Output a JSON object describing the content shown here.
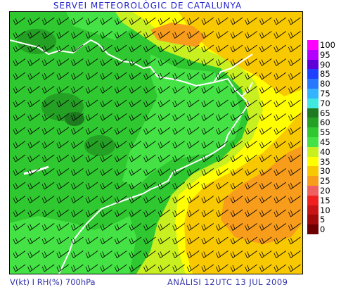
{
  "header": {
    "title": "SERVEI METEOROLÒGIC DE CATALUNYA"
  },
  "footer": {
    "variables": "V(kt) I RH(%) 700hPa",
    "analysis": "ANÀLISI 12UTC 13 JUL 2009"
  },
  "legend": {
    "items": [
      {
        "label": "100",
        "color": "#ff00ff"
      },
      {
        "label": "95",
        "color": "#b400ff"
      },
      {
        "label": "90",
        "color": "#6000d8"
      },
      {
        "label": "85",
        "color": "#2040ff"
      },
      {
        "label": "80",
        "color": "#2878ff"
      },
      {
        "label": "75",
        "color": "#34b4ff"
      },
      {
        "label": "70",
        "color": "#40e8e0"
      },
      {
        "label": "65",
        "color": "#1e7a1e"
      },
      {
        "label": "60",
        "color": "#24a024"
      },
      {
        "label": "55",
        "color": "#30c830"
      },
      {
        "label": "45",
        "color": "#44e244"
      },
      {
        "label": "40",
        "color": "#c8f020"
      },
      {
        "label": "35",
        "color": "#ffff00"
      },
      {
        "label": "30",
        "color": "#f8c800"
      },
      {
        "label": "25",
        "color": "#f89c1c"
      },
      {
        "label": "20",
        "color": "#f06060"
      },
      {
        "label": "15",
        "color": "#f02020"
      },
      {
        "label": "10",
        "color": "#c81414"
      },
      {
        "label": "5",
        "color": "#a00a0a"
      },
      {
        "label": "0",
        "color": "#6c0000"
      }
    ]
  },
  "map": {
    "field": "relative humidity",
    "wind_barb_color": "#000000",
    "coastline_color": "#ffffff"
  }
}
